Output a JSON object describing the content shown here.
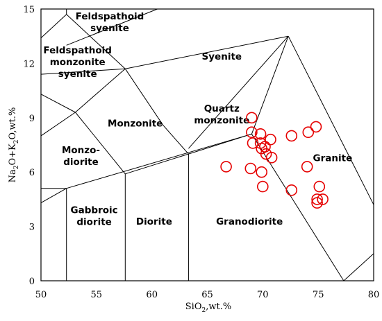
{
  "chart_data": {
    "type": "scatter",
    "diagram": "TAS",
    "xlabel": {
      "pre": "SiO",
      "sub": "2",
      "post": ",wt.%"
    },
    "ylabel": {
      "p1": "Na",
      "s1": "2",
      "p2": "O+K",
      "s2": "2",
      "p3": "O,wt.%"
    },
    "xlim": [
      50,
      80
    ],
    "ylim": [
      0,
      15
    ],
    "x_ticks": [
      50,
      55,
      60,
      65,
      70,
      75,
      80
    ],
    "y_ticks": [
      0,
      3,
      6,
      9,
      12,
      15
    ],
    "grid": false,
    "marker_color": "#e60000",
    "field_boundaries": [
      [
        [
          52.3,
          13
        ],
        [
          60.5,
          15
        ]
      ],
      [
        [
          52.3,
          15
        ],
        [
          52.3,
          14.7
        ]
      ],
      [
        [
          52.3,
          14.7
        ],
        [
          57.6,
          11.7
        ]
      ],
      [
        [
          52.3,
          14.7
        ],
        [
          50,
          13.4
        ]
      ],
      [
        [
          57.6,
          11.7
        ],
        [
          50,
          11.4
        ]
      ],
      [
        [
          57.6,
          11.7
        ],
        [
          61,
          8.6
        ]
      ],
      [
        [
          57.6,
          11.7
        ],
        [
          72.3,
          13.5
        ]
      ],
      [
        [
          72.3,
          13.5
        ],
        [
          80,
          4.2
        ]
      ],
      [
        [
          72.3,
          13.5
        ],
        [
          69,
          8.1
        ]
      ],
      [
        [
          72.3,
          13.5
        ],
        [
          63.3,
          7.3
        ]
      ],
      [
        [
          50,
          10.3
        ],
        [
          53.1,
          9.3
        ]
      ],
      [
        [
          53.1,
          9.3
        ],
        [
          57.6,
          11.7
        ]
      ],
      [
        [
          53.1,
          9.3
        ],
        [
          50,
          8
        ]
      ],
      [
        [
          53.1,
          9.3
        ],
        [
          57.6,
          5.9
        ]
      ],
      [
        [
          57.6,
          5.9
        ],
        [
          63.3,
          7
        ]
      ],
      [
        [
          63.3,
          7
        ],
        [
          69,
          8.1
        ]
      ],
      [
        [
          61,
          8.6
        ],
        [
          63.3,
          7
        ]
      ],
      [
        [
          63.3,
          7
        ],
        [
          63.3,
          0
        ]
      ],
      [
        [
          57.6,
          5.9
        ],
        [
          57.6,
          0
        ]
      ],
      [
        [
          52.3,
          5.1
        ],
        [
          52.3,
          0
        ]
      ],
      [
        [
          52.3,
          5.1
        ],
        [
          50,
          5.1
        ]
      ],
      [
        [
          52.3,
          5.1
        ],
        [
          50,
          4.3
        ]
      ],
      [
        [
          52.3,
          5.1
        ],
        [
          69,
          8.1
        ]
      ],
      [
        [
          69,
          8.1
        ],
        [
          77.3,
          0
        ]
      ],
      [
        [
          77.3,
          0
        ],
        [
          80,
          1.5
        ]
      ]
    ],
    "field_labels": [
      {
        "lines": [
          "Feldspathoid",
          "syenite"
        ],
        "x": 56.2,
        "y": 14.3
      },
      {
        "lines": [
          "Feldspathoid",
          "monzonite",
          "syenite"
        ],
        "x": 53.3,
        "y": 12.1
      },
      {
        "lines": [
          "Syenite"
        ],
        "x": 66.3,
        "y": 12.4
      },
      {
        "lines": [
          "Monzonite"
        ],
        "x": 58.5,
        "y": 8.7
      },
      {
        "lines": [
          "Quartz",
          "monzonite"
        ],
        "x": 66.3,
        "y": 9.2
      },
      {
        "lines": [
          "Monzo-",
          "diorite"
        ],
        "x": 53.6,
        "y": 6.9
      },
      {
        "lines": [
          "Gabbroic",
          "diorite"
        ],
        "x": 54.8,
        "y": 3.6
      },
      {
        "lines": [
          "Diorite"
        ],
        "x": 60.2,
        "y": 3.3
      },
      {
        "lines": [
          "Granodiorite"
        ],
        "x": 68.8,
        "y": 3.3
      },
      {
        "lines": [
          "Granite"
        ],
        "x": 76.3,
        "y": 6.8
      }
    ],
    "series": [
      {
        "values": [
          [
            69,
            9
          ],
          [
            69,
            8.2
          ],
          [
            69.1,
            7.6
          ],
          [
            69.8,
            8.1
          ],
          [
            69.8,
            7.6
          ],
          [
            69.9,
            7.3
          ],
          [
            70.2,
            7.4
          ],
          [
            70.3,
            7
          ],
          [
            70.7,
            7.8
          ],
          [
            70.8,
            6.8
          ],
          [
            66.7,
            6.3
          ],
          [
            68.9,
            6.2
          ],
          [
            69.9,
            6
          ],
          [
            70,
            5.2
          ],
          [
            72.6,
            8
          ],
          [
            72.6,
            5
          ],
          [
            74.1,
            8.2
          ],
          [
            74.8,
            8.5
          ],
          [
            74,
            6.3
          ],
          [
            74.9,
            4.3
          ],
          [
            74.9,
            4.5
          ],
          [
            75.1,
            5.2
          ],
          [
            75.4,
            4.5
          ]
        ]
      }
    ]
  }
}
